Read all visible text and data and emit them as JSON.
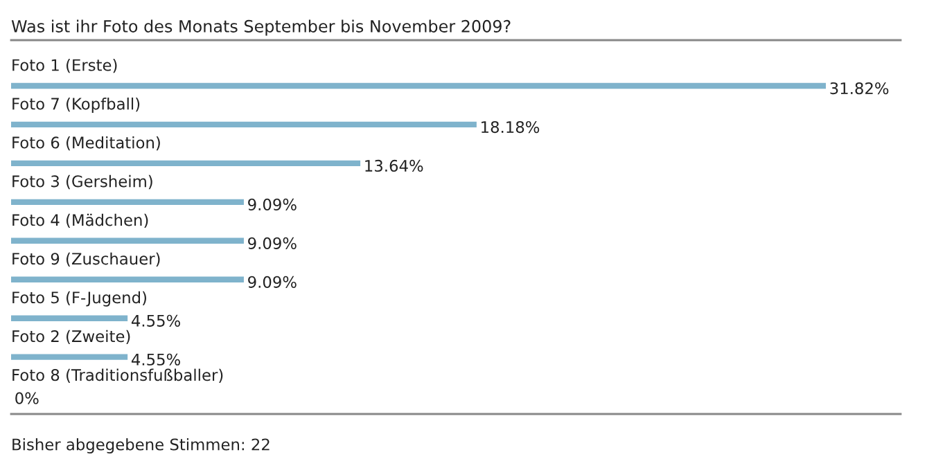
{
  "chart_data": {
    "type": "bar",
    "orientation": "horizontal",
    "title": "Was ist ihr Foto des Monats September bis November 2009?",
    "categories": [
      "Foto 1 (Erste)",
      "Foto 7 (Kopfball)",
      "Foto 6 (Meditation)",
      "Foto 3 (Gersheim)",
      "Foto 4 (Mädchen)",
      "Foto 9 (Zuschauer)",
      "Foto 5 (F-Jugend)",
      "Foto 2 (Zweite)",
      "Foto 8 (Traditionsfußballer)"
    ],
    "values": [
      31.82,
      18.18,
      13.64,
      9.09,
      9.09,
      9.09,
      4.55,
      4.55,
      0
    ],
    "value_labels": [
      "31.82%",
      "18.18%",
      "13.64%",
      "9.09%",
      "9.09%",
      "9.09%",
      "4.55%",
      "4.55%",
      "0%"
    ],
    "color": "#7fb3cc",
    "tick_labels": false,
    "annotations": [
      "Bisher abgegebene Stimmen: 22"
    ]
  }
}
